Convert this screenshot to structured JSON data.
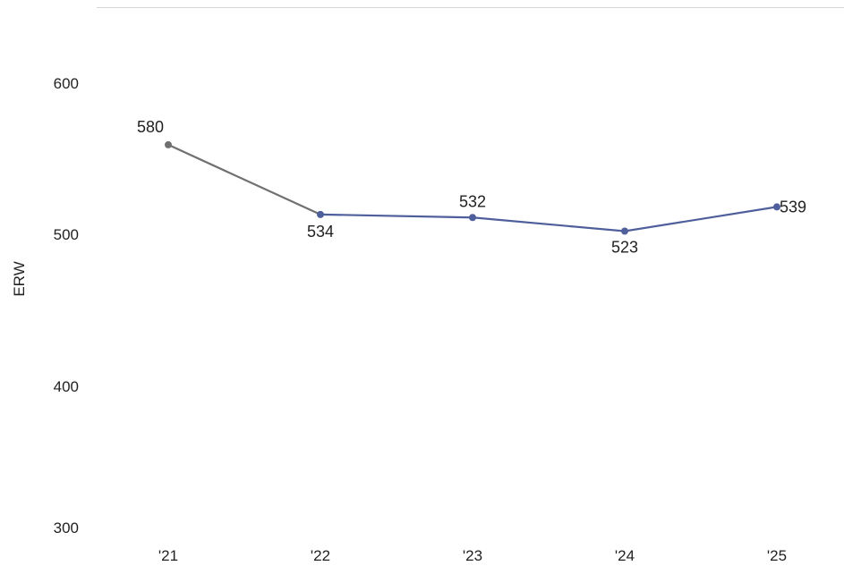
{
  "chart_data": {
    "type": "line",
    "title": "",
    "xlabel": "",
    "ylabel": "ERW",
    "categories": [
      "'21",
      "'22",
      "'23",
      "'24",
      "'25"
    ],
    "values": [
      580,
      534,
      532,
      523,
      539
    ],
    "data_labels": [
      "580",
      "534",
      "532",
      "523",
      "539"
    ],
    "yticks": [
      300,
      400,
      500,
      600
    ],
    "ylim": [
      290,
      615
    ],
    "grid": false,
    "legend": "none",
    "colors": {
      "first_segment": "#707070",
      "line": "#4e5f9c",
      "marker": "#4e5f9c",
      "first_marker": "#707070"
    }
  }
}
